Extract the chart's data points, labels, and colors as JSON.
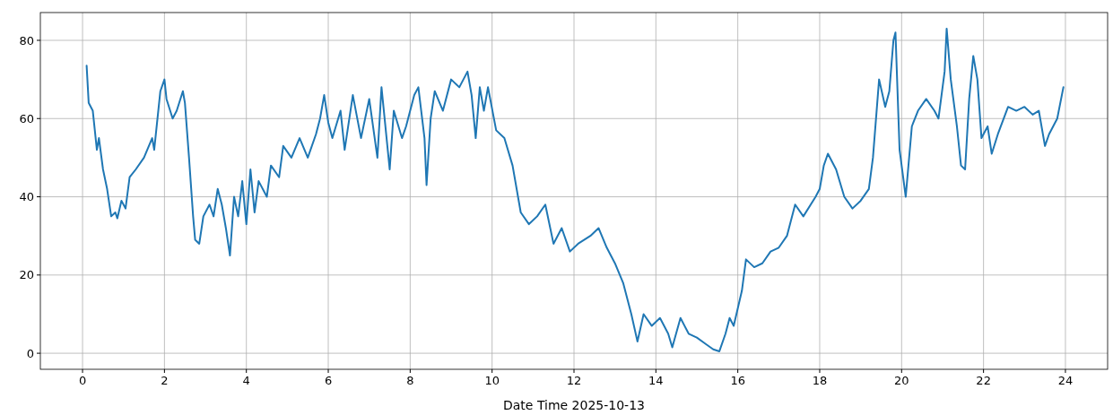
{
  "chart_data": {
    "type": "line",
    "xlabel": "Date Time 2025-10-13",
    "xlim": [
      -1.03,
      25.03
    ],
    "ylim": [
      -4.1,
      87.1
    ],
    "xticks": [
      0,
      2,
      4,
      6,
      8,
      10,
      12,
      14,
      16,
      18,
      20,
      22,
      24
    ],
    "yticks": [
      0,
      20,
      40,
      60,
      80
    ],
    "grid": true,
    "marker": "none",
    "line_style": "solid",
    "series": [
      {
        "color": "#1f77b4",
        "x": [
          0.1,
          0.15,
          0.25,
          0.35,
          0.4,
          0.5,
          0.6,
          0.7,
          0.8,
          0.85,
          0.95,
          1.05,
          1.15,
          1.3,
          1.5,
          1.7,
          1.75,
          1.9,
          2.0,
          2.05,
          2.2,
          2.3,
          2.45,
          2.5,
          2.6,
          2.7,
          2.75,
          2.85,
          2.95,
          3.1,
          3.2,
          3.3,
          3.4,
          3.5,
          3.6,
          3.7,
          3.8,
          3.9,
          4.0,
          4.1,
          4.2,
          4.3,
          4.5,
          4.6,
          4.8,
          4.9,
          5.1,
          5.3,
          5.5,
          5.7,
          5.8,
          5.9,
          6.0,
          6.1,
          6.3,
          6.4,
          6.6,
          6.8,
          7.0,
          7.2,
          7.3,
          7.5,
          7.6,
          7.8,
          7.9,
          8.1,
          8.2,
          8.35,
          8.4,
          8.5,
          8.6,
          8.8,
          9.0,
          9.2,
          9.4,
          9.5,
          9.6,
          9.7,
          9.8,
          9.9,
          10.1,
          10.3,
          10.5,
          10.7,
          10.9,
          11.1,
          11.3,
          11.5,
          11.7,
          11.9,
          12.1,
          12.4,
          12.6,
          12.8,
          13.0,
          13.2,
          13.4,
          13.55,
          13.7,
          13.9,
          14.1,
          14.3,
          14.4,
          14.6,
          14.8,
          15.0,
          15.2,
          15.4,
          15.55,
          15.7,
          15.8,
          15.9,
          16.1,
          16.2,
          16.4,
          16.6,
          16.8,
          17.0,
          17.2,
          17.4,
          17.6,
          17.9,
          18.0,
          18.1,
          18.2,
          18.4,
          18.6,
          18.8,
          19.0,
          19.2,
          19.3,
          19.45,
          19.6,
          19.7,
          19.8,
          19.85,
          19.95,
          20.1,
          20.25,
          20.4,
          20.6,
          20.8,
          20.9,
          21.05,
          21.1,
          21.2,
          21.35,
          21.45,
          21.55,
          21.65,
          21.75,
          21.85,
          21.95,
          22.1,
          22.2,
          22.35,
          22.6,
          22.8,
          23.0,
          23.2,
          23.35,
          23.5,
          23.6,
          23.8,
          23.95
        ],
        "values": [
          73.5,
          64,
          62,
          52,
          55,
          47,
          42,
          35,
          36,
          34.5,
          39,
          37,
          45,
          47,
          50,
          55,
          52,
          67,
          70,
          65,
          60,
          62,
          67,
          64,
          50,
          35,
          29,
          28,
          35,
          38,
          35,
          42,
          38,
          32,
          25,
          40,
          35,
          44,
          33,
          47,
          36,
          44,
          40,
          48,
          45,
          53,
          50,
          55,
          50,
          56,
          60,
          66,
          59,
          55,
          62,
          52,
          66,
          55,
          65,
          50,
          68,
          47,
          62,
          55,
          58,
          66,
          68,
          55,
          43,
          60,
          67,
          62,
          70,
          68,
          72,
          66,
          55,
          68,
          62,
          68,
          57,
          55,
          48,
          36,
          33,
          35,
          38,
          28,
          32,
          26,
          28,
          30,
          32,
          27,
          23,
          18,
          10,
          3,
          10,
          7,
          9,
          5,
          1.5,
          9,
          5,
          4,
          2.5,
          1,
          0.5,
          5,
          9,
          7,
          16,
          24,
          22,
          23,
          26,
          27,
          30,
          38,
          35,
          40,
          42,
          48,
          51,
          47,
          40,
          37,
          39,
          42,
          50,
          70,
          63,
          67,
          80,
          82,
          52,
          40,
          58,
          62,
          65,
          62,
          60,
          72,
          83,
          70,
          58,
          48,
          47,
          65,
          76,
          70,
          55,
          58,
          51,
          56,
          63,
          62,
          63,
          61,
          62,
          53,
          56,
          60,
          68
        ]
      }
    ]
  }
}
